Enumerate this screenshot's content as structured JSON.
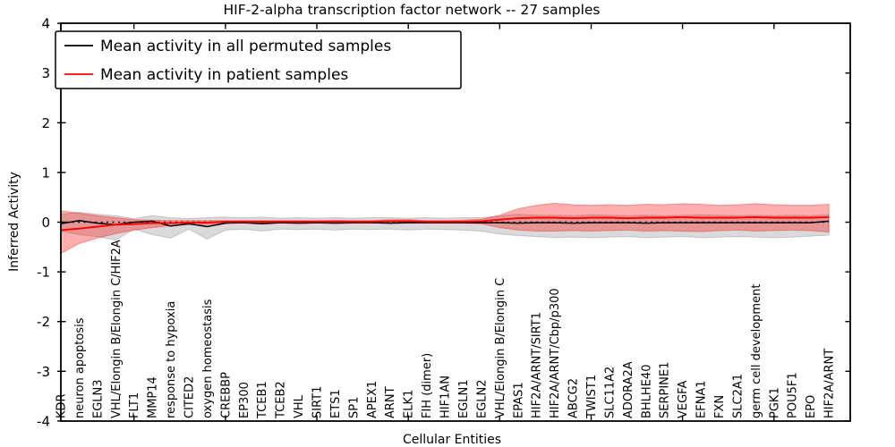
{
  "chart_data": {
    "type": "line",
    "title": "HIF-2-alpha transcription factor network -- 27 samples",
    "xlabel": "Cellular Entities",
    "ylabel": "Inferred Activity",
    "ylim": [
      -4,
      4
    ],
    "yticks": [
      -4,
      -3,
      -2,
      -1,
      0,
      1,
      2,
      3,
      4
    ],
    "xtick_indices": [
      4,
      9,
      14,
      19,
      24,
      29,
      34,
      39
    ],
    "grid": false,
    "legend_position": "upper left",
    "zero_line": {
      "y": 0,
      "style": "dotted",
      "color": "#000000"
    },
    "categories": [
      "KDR",
      "neuron apoptosis",
      "EGLN3",
      "VHL/Elongin B/Elongin C/HIF2A",
      "FLT1",
      "MMP14",
      "response to hypoxia",
      "CITED2",
      "oxygen homeostasis",
      "CREBBP",
      "EP300",
      "TCEB1",
      "TCEB2",
      "VHL",
      "SIRT1",
      "ETS1",
      "SP1",
      "APEX1",
      "ARNT",
      "ELK1",
      "FIH (dimer)",
      "HIF1AN",
      "EGLN1",
      "EGLN2",
      "VHL/Elongin B/Elongin C",
      "EPAS1",
      "HIF2A/ARNT/SIRT1",
      "HIF2A/ARNT/Cbp/p300",
      "ABCG2",
      "TWIST1",
      "SLC11A2",
      "ADORA2A",
      "BHLHE40",
      "SERPINE1",
      "VEGFA",
      "EFNA1",
      "FXN",
      "SLC2A1",
      "germ cell development",
      "PGK1",
      "POU5F1",
      "EPO",
      "HIF2A/ARNT"
    ],
    "series": [
      {
        "name": "Mean activity in all permuted samples",
        "color": "#000000",
        "band_color": "#787878",
        "values": [
          -0.03,
          0.03,
          -0.02,
          -0.05,
          0.0,
          0.02,
          -0.08,
          -0.03,
          -0.09,
          -0.02,
          -0.01,
          -0.03,
          -0.01,
          -0.02,
          -0.01,
          -0.02,
          -0.01,
          -0.01,
          -0.02,
          -0.01,
          -0.01,
          -0.01,
          -0.01,
          -0.01,
          -0.01,
          -0.02,
          -0.01,
          -0.01,
          -0.02,
          -0.01,
          -0.01,
          -0.01,
          -0.02,
          -0.01,
          -0.01,
          -0.01,
          -0.01,
          -0.01,
          -0.01,
          -0.01,
          -0.01,
          -0.01,
          0.02
        ],
        "band_upper": [
          0.16,
          0.2,
          0.16,
          0.13,
          0.07,
          0.13,
          0.09,
          0.07,
          0.09,
          0.1,
          0.09,
          0.1,
          0.08,
          0.09,
          0.08,
          0.09,
          0.08,
          0.09,
          0.09,
          0.08,
          0.09,
          0.08,
          0.09,
          0.09,
          0.12,
          0.16,
          0.14,
          0.14,
          0.13,
          0.15,
          0.14,
          0.13,
          0.14,
          0.13,
          0.14,
          0.15,
          0.14,
          0.13,
          0.14,
          0.13,
          0.14,
          0.13,
          0.15
        ],
        "band_lower": [
          -0.18,
          -0.25,
          -0.29,
          -0.36,
          -0.14,
          -0.25,
          -0.32,
          -0.14,
          -0.34,
          -0.16,
          -0.14,
          -0.18,
          -0.14,
          -0.15,
          -0.14,
          -0.16,
          -0.14,
          -0.15,
          -0.14,
          -0.16,
          -0.14,
          -0.15,
          -0.16,
          -0.18,
          -0.24,
          -0.27,
          -0.29,
          -0.31,
          -0.3,
          -0.31,
          -0.3,
          -0.29,
          -0.31,
          -0.3,
          -0.29,
          -0.31,
          -0.3,
          -0.29,
          -0.3,
          -0.31,
          -0.3,
          -0.28,
          -0.26
        ]
      },
      {
        "name": "Mean activity in patient samples",
        "color": "#ff0000",
        "band_color": "#ff0000",
        "values": [
          -0.16,
          -0.13,
          -0.09,
          -0.05,
          -0.04,
          -0.02,
          -0.02,
          -0.01,
          -0.01,
          0.01,
          0.01,
          0.01,
          0.01,
          0.01,
          0.01,
          0.01,
          0.01,
          0.01,
          0.02,
          0.02,
          0.01,
          0.01,
          0.01,
          0.02,
          0.05,
          0.08,
          0.09,
          0.09,
          0.08,
          0.09,
          0.09,
          0.08,
          0.09,
          0.09,
          0.1,
          0.09,
          0.09,
          0.09,
          0.1,
          0.09,
          0.09,
          0.09,
          0.1
        ],
        "band_upper": [
          0.23,
          0.18,
          0.13,
          0.09,
          0.05,
          0.04,
          0.03,
          0.03,
          0.03,
          0.03,
          0.03,
          0.03,
          0.03,
          0.03,
          0.03,
          0.04,
          0.03,
          0.03,
          0.05,
          0.05,
          0.03,
          0.03,
          0.04,
          0.06,
          0.14,
          0.27,
          0.34,
          0.38,
          0.35,
          0.34,
          0.35,
          0.34,
          0.36,
          0.35,
          0.37,
          0.36,
          0.34,
          0.35,
          0.37,
          0.35,
          0.34,
          0.34,
          0.36
        ],
        "band_lower": [
          -0.63,
          -0.43,
          -0.32,
          -0.23,
          -0.16,
          -0.11,
          -0.07,
          -0.05,
          -0.05,
          -0.02,
          -0.01,
          -0.01,
          -0.01,
          -0.01,
          -0.01,
          -0.02,
          -0.01,
          -0.01,
          -0.02,
          -0.02,
          -0.01,
          -0.01,
          -0.02,
          -0.03,
          -0.11,
          -0.16,
          -0.18,
          -0.18,
          -0.17,
          -0.18,
          -0.17,
          -0.16,
          -0.18,
          -0.17,
          -0.18,
          -0.19,
          -0.17,
          -0.16,
          -0.18,
          -0.17,
          -0.16,
          -0.17,
          -0.2
        ]
      }
    ]
  }
}
